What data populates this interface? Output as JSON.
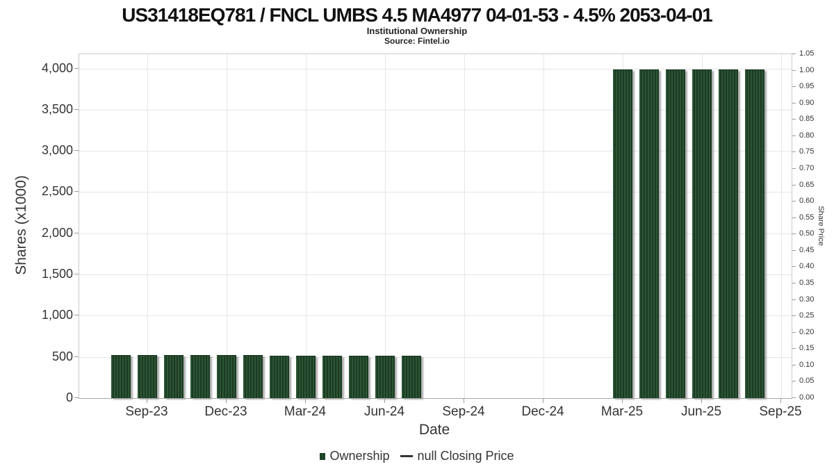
{
  "header": {
    "title": "US31418EQ781 / FNCL UMBS 4.5 MA4977 04-01-53 - 4.5% 2053-04-01",
    "subtitle": "Institutional Ownership",
    "source": "Source: Fintel.io"
  },
  "chart_data": {
    "type": "bar",
    "title": "US31418EQ781 / FNCL UMBS 4.5 MA4977 04-01-53 - 4.5% 2053-04-01",
    "subtitle": "Institutional Ownership",
    "source": "Source: Fintel.io",
    "xlabel": "Date",
    "ylabel_left": "Shares (x1000)",
    "ylabel_right": "Share Price",
    "grid": true,
    "legend_position": "bottom-center",
    "legend": [
      {
        "label": "Ownership",
        "marker": "square",
        "color": "#1e4427"
      },
      {
        "label": "null Closing Price",
        "marker": "line",
        "color": "#333333"
      }
    ],
    "bar_color": "#1e4427",
    "bar_stripe_color": "#2c5635",
    "x_axis": {
      "unit": "months since Aug-23",
      "ticks": [
        {
          "label": "Sep-23",
          "m": 1
        },
        {
          "label": "Dec-23",
          "m": 4
        },
        {
          "label": "Mar-24",
          "m": 7
        },
        {
          "label": "Jun-24",
          "m": 10
        },
        {
          "label": "Sep-24",
          "m": 13
        },
        {
          "label": "Dec-24",
          "m": 16
        },
        {
          "label": "Mar-25",
          "m": 19
        },
        {
          "label": "Jun-25",
          "m": 22
        },
        {
          "label": "Sep-25",
          "m": 25
        }
      ]
    },
    "y_left": {
      "title": "Shares (x1000)",
      "max_render": 4173,
      "ticks": [
        {
          "label": "0",
          "value": 0
        },
        {
          "label": "500",
          "value": 500
        },
        {
          "label": "1,000",
          "value": 1000
        },
        {
          "label": "1,500",
          "value": 1500
        },
        {
          "label": "2,000",
          "value": 2000
        },
        {
          "label": "2,500",
          "value": 2500
        },
        {
          "label": "3,000",
          "value": 3000
        },
        {
          "label": "3,500",
          "value": 3500
        },
        {
          "label": "4,000",
          "value": 4000
        }
      ]
    },
    "y_right": {
      "title": "Share Price",
      "max_render": 1.05,
      "ticks": [
        {
          "label": "0.00",
          "value": 0.0
        },
        {
          "label": "0.05",
          "value": 0.05
        },
        {
          "label": "0.10",
          "value": 0.1
        },
        {
          "label": "0.15",
          "value": 0.15
        },
        {
          "label": "0.20",
          "value": 0.2
        },
        {
          "label": "0.25",
          "value": 0.25
        },
        {
          "label": "0.30",
          "value": 0.3
        },
        {
          "label": "0.35",
          "value": 0.35
        },
        {
          "label": "0.40",
          "value": 0.4
        },
        {
          "label": "0.45",
          "value": 0.45
        },
        {
          "label": "0.50",
          "value": 0.5
        },
        {
          "label": "0.55",
          "value": 0.55
        },
        {
          "label": "0.60",
          "value": 0.6
        },
        {
          "label": "0.65",
          "value": 0.65
        },
        {
          "label": "0.70",
          "value": 0.7
        },
        {
          "label": "0.75",
          "value": 0.75
        },
        {
          "label": "0.80",
          "value": 0.8
        },
        {
          "label": "0.85",
          "value": 0.85
        },
        {
          "label": "0.90",
          "value": 0.9
        },
        {
          "label": "0.95",
          "value": 0.95
        },
        {
          "label": "1.00",
          "value": 1.0
        },
        {
          "label": "1.05",
          "value": 1.05
        }
      ]
    },
    "series": [
      {
        "name": "Ownership",
        "type": "column",
        "axis": "left",
        "points": [
          {
            "x": "Aug-23",
            "m": 0,
            "value": 515
          },
          {
            "x": "Sep-23",
            "m": 1,
            "value": 515
          },
          {
            "x": "Oct-23",
            "m": 2,
            "value": 516
          },
          {
            "x": "Nov-23",
            "m": 3,
            "value": 514
          },
          {
            "x": "Dec-23",
            "m": 4,
            "value": 513
          },
          {
            "x": "Jan-24",
            "m": 5,
            "value": 512
          },
          {
            "x": "Feb-24",
            "m": 6,
            "value": 510
          },
          {
            "x": "Mar-24",
            "m": 7,
            "value": 509
          },
          {
            "x": "Apr-24",
            "m": 8,
            "value": 508
          },
          {
            "x": "May-24",
            "m": 9,
            "value": 508
          },
          {
            "x": "Jun-24",
            "m": 10,
            "value": 506
          },
          {
            "x": "Jul-24",
            "m": 11,
            "value": 505
          },
          {
            "x": "Mar-25",
            "m": 19,
            "value": 3980
          },
          {
            "x": "Apr-25",
            "m": 20,
            "value": 3980
          },
          {
            "x": "May-25",
            "m": 21,
            "value": 3980
          },
          {
            "x": "Jun-25",
            "m": 22,
            "value": 3980
          },
          {
            "x": "Jul-25",
            "m": 23,
            "value": 3980
          },
          {
            "x": "Aug-25",
            "m": 24,
            "value": 3980
          }
        ]
      },
      {
        "name": "null Closing Price",
        "type": "line",
        "axis": "right",
        "points": []
      }
    ]
  }
}
